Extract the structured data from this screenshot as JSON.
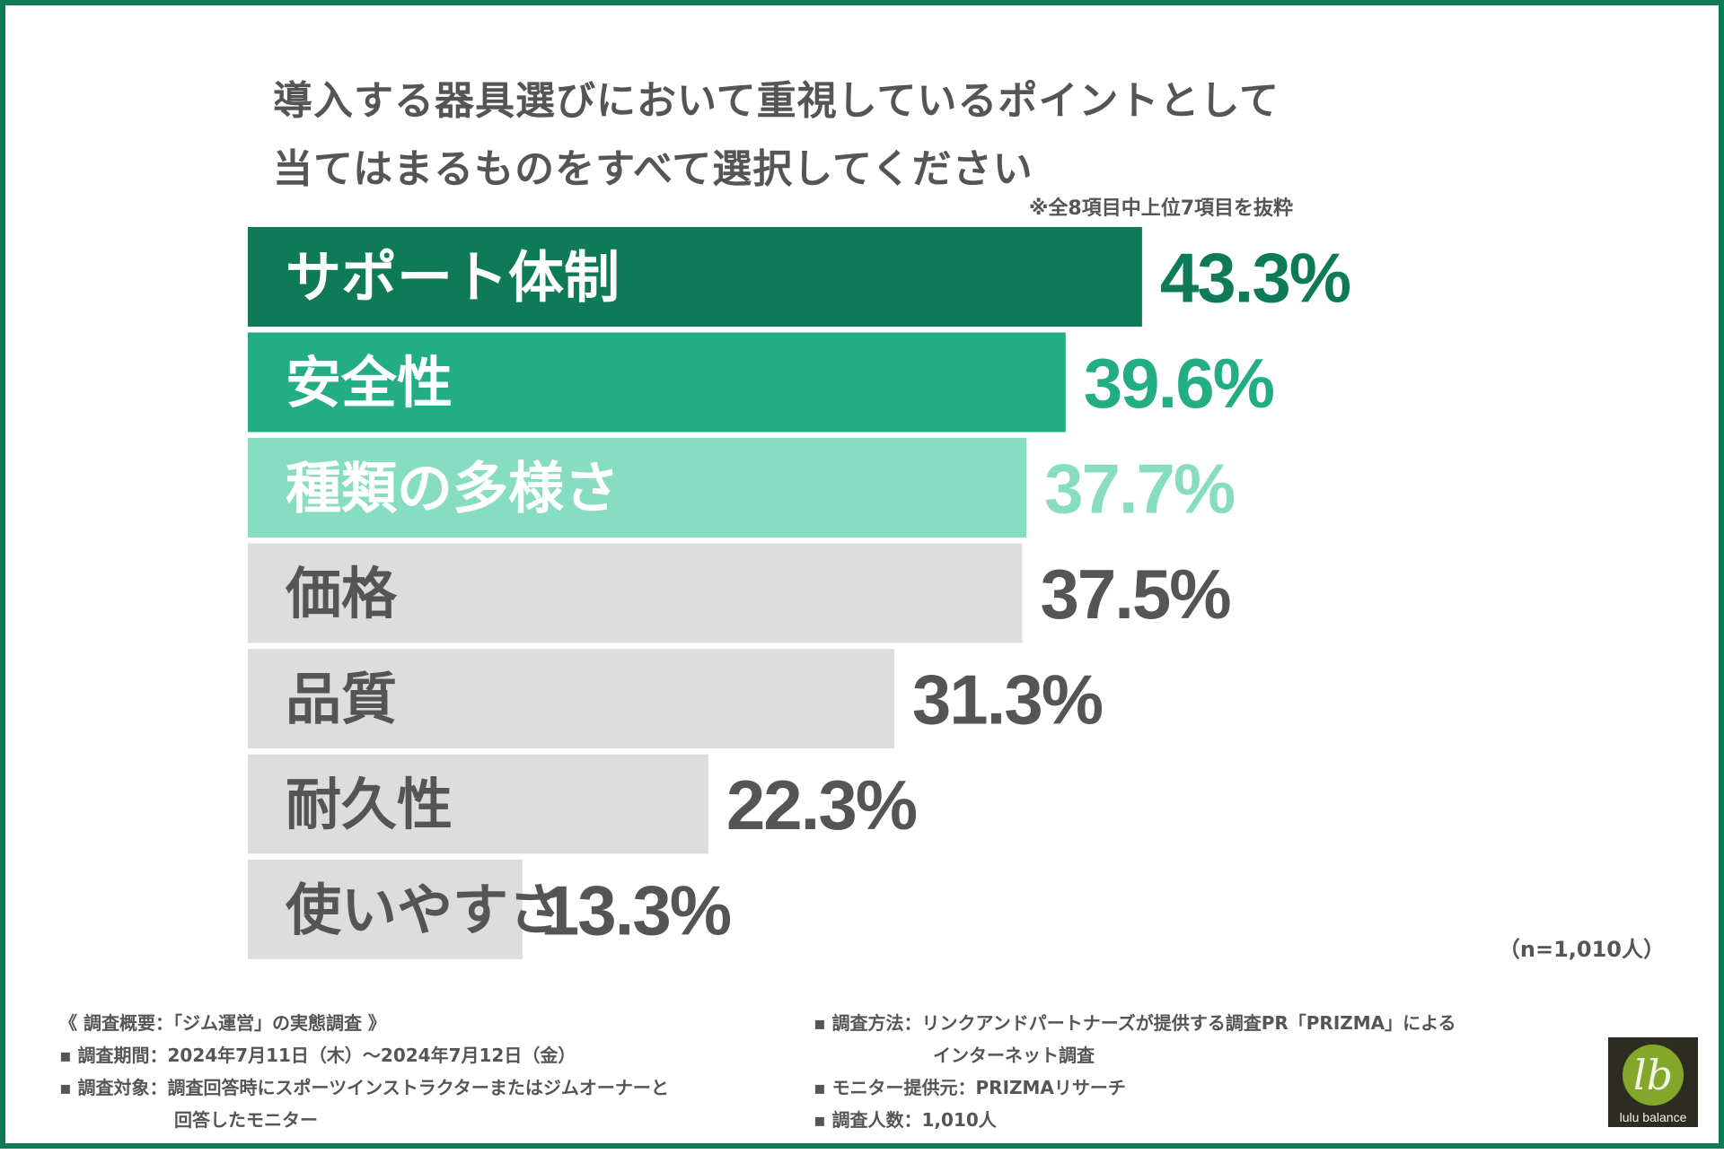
{
  "title": {
    "line1": "導入する器具選びにおいて重視しているポイントとして",
    "line2": "当てはまるものをすべて選択してください"
  },
  "note": "※全8項目中上位7項目を抜粋",
  "sample": "（n=1,010人）",
  "colors": {
    "frame": "#0e7a57",
    "text": "#555555",
    "grey_bar": "#dddddd",
    "grey_value": "#555555"
  },
  "chart_data": {
    "type": "bar",
    "orientation": "horizontal",
    "categories": [
      "サポート体制",
      "安全性",
      "種類の多様さ",
      "価格",
      "品質",
      "耐久性",
      "使いやすさ"
    ],
    "values": [
      43.3,
      39.6,
      37.7,
      37.5,
      31.3,
      22.3,
      13.3
    ],
    "value_labels": [
      "43.3%",
      "39.6%",
      "37.7%",
      "37.5%",
      "31.3%",
      "22.3%",
      "13.3%"
    ],
    "unit": "%",
    "xlim": [
      0,
      50
    ],
    "bar_colors": [
      "#0e7a57",
      "#22ad82",
      "#87ddc2",
      "#dddddd",
      "#dddddd",
      "#dddddd",
      "#dddddd"
    ],
    "category_label_colors": [
      "#ffffff",
      "#ffffff",
      "#ffffff",
      "#555555",
      "#555555",
      "#555555",
      "#555555"
    ],
    "value_label_colors": [
      "#0e7a57",
      "#22ad82",
      "#87ddc2",
      "#555555",
      "#555555",
      "#555555",
      "#555555"
    ],
    "title": "導入する器具選びにおいて重視しているポイントとして当てはまるものをすべて選択してください"
  },
  "footnote": {
    "left": [
      "《 調査概要：「ジム運営」の実態調査 》",
      "▪ 調査期間：2024年7月11日（木）～2024年7月12日（金）",
      "▪ 調査対象：調査回答時にスポーツインストラクターまたはジムオーナーと",
      "回答したモニター"
    ],
    "right": [
      "▪ 調査方法：リンクアンドパートナーズが提供する調査PR「PRIZMA」による",
      "インターネット調査",
      "▪ モニター提供元：PRIZMAリサーチ",
      "▪ 調査人数：1,010人"
    ]
  },
  "logo": {
    "mark": "lb",
    "text": "lulu balance"
  }
}
